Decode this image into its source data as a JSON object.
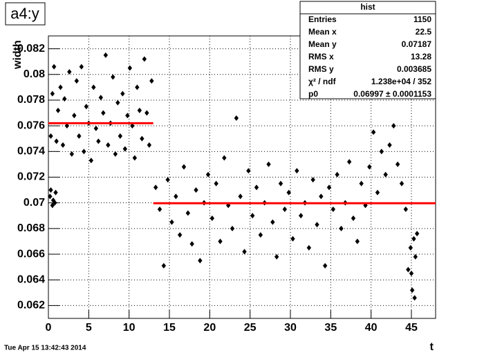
{
  "chart_data": {
    "type": "scatter",
    "title": "a4:y",
    "xlabel": "t",
    "ylabel": "width",
    "timestamp": "Tue Apr 15 13:42:43 2014",
    "xlim": [
      0,
      48
    ],
    "ylim": [
      0.061,
      0.083
    ],
    "xticks": [
      0,
      5,
      10,
      15,
      20,
      25,
      30,
      35,
      40,
      45
    ],
    "yticks": [
      0.062,
      0.064,
      0.066,
      0.068,
      0.07,
      0.072,
      0.074,
      0.076,
      0.078,
      0.08,
      0.082
    ],
    "grid": true,
    "color": "#000000",
    "fit_color": "#ff0000",
    "stats": {
      "title": "hist",
      "rows": [
        [
          "Entries",
          "1150"
        ],
        [
          "Mean x",
          "22.5"
        ],
        [
          "Mean y",
          "0.07187"
        ],
        [
          "RMS x",
          "13.28"
        ],
        [
          "RMS y",
          "0.003685"
        ],
        [
          "χ² / ndf",
          "1.238e+04 / 352"
        ],
        [
          "p0",
          "0.06997 ± 0.0001153"
        ]
      ]
    },
    "fits": [
      {
        "x": [
          0,
          13
        ],
        "y": 0.0762
      },
      {
        "x": [
          13,
          48
        ],
        "y": 0.06997
      }
    ],
    "x": [
      0.2,
      0.3,
      0.5,
      0.6,
      0.8,
      0.9,
      0.3,
      0.5,
      0.7,
      1.0,
      1.2,
      1.5,
      1.8,
      2.0,
      2.3,
      2.6,
      2.9,
      3.2,
      3.5,
      3.8,
      4.1,
      4.4,
      4.7,
      5.0,
      5.3,
      5.6,
      5.9,
      6.2,
      6.5,
      6.8,
      7.1,
      7.4,
      7.7,
      8.0,
      8.3,
      8.6,
      8.9,
      9.2,
      9.5,
      9.8,
      10.1,
      10.4,
      10.7,
      11.0,
      11.3,
      11.6,
      11.9,
      12.2,
      12.5,
      12.8,
      13.3,
      13.8,
      14.3,
      14.8,
      15.3,
      15.8,
      16.3,
      16.8,
      17.3,
      17.8,
      18.3,
      18.8,
      19.3,
      19.8,
      20.3,
      20.8,
      21.3,
      21.8,
      22.3,
      22.8,
      23.3,
      23.8,
      24.3,
      24.8,
      25.3,
      25.8,
      26.3,
      26.8,
      27.3,
      27.8,
      28.3,
      28.8,
      29.3,
      29.8,
      30.3,
      30.8,
      31.3,
      31.8,
      32.3,
      32.8,
      33.3,
      33.8,
      34.3,
      34.8,
      35.3,
      35.8,
      36.3,
      36.8,
      37.3,
      37.8,
      38.3,
      38.8,
      39.3,
      39.8,
      40.3,
      40.8,
      41.3,
      41.8,
      42.3,
      42.8,
      43.3,
      43.8,
      44.3,
      44.6,
      44.9,
      45.1,
      45.3,
      45.5,
      45.7,
      45.0,
      45.4
    ],
    "values": [
      0.0705,
      0.071,
      0.0698,
      0.0702,
      0.07,
      0.0708,
      0.0752,
      0.0785,
      0.0806,
      0.0748,
      0.0772,
      0.079,
      0.0745,
      0.0781,
      0.076,
      0.0802,
      0.0738,
      0.0768,
      0.0795,
      0.0752,
      0.0806,
      0.074,
      0.0775,
      0.0762,
      0.0733,
      0.079,
      0.0758,
      0.0748,
      0.0782,
      0.077,
      0.0815,
      0.0745,
      0.0762,
      0.0798,
      0.0738,
      0.0778,
      0.0752,
      0.0785,
      0.0742,
      0.0768,
      0.0805,
      0.076,
      0.0735,
      0.079,
      0.0772,
      0.075,
      0.0812,
      0.077,
      0.0745,
      0.0795,
      0.0712,
      0.0695,
      0.0651,
      0.0718,
      0.0685,
      0.0705,
      0.0675,
      0.0728,
      0.0692,
      0.0668,
      0.071,
      0.0655,
      0.07,
      0.0722,
      0.0688,
      0.0715,
      0.067,
      0.0735,
      0.0698,
      0.068,
      0.0766,
      0.0705,
      0.0662,
      0.0725,
      0.069,
      0.0712,
      0.0675,
      0.07,
      0.073,
      0.0685,
      0.0658,
      0.0715,
      0.0695,
      0.0708,
      0.0672,
      0.0725,
      0.069,
      0.07,
      0.0665,
      0.0718,
      0.0683,
      0.0705,
      0.0651,
      0.0712,
      0.0695,
      0.0722,
      0.068,
      0.07,
      0.0732,
      0.0688,
      0.067,
      0.0715,
      0.0698,
      0.0728,
      0.0755,
      0.0708,
      0.074,
      0.0722,
      0.0745,
      0.076,
      0.073,
      0.0715,
      0.0695,
      0.0648,
      0.0665,
      0.0632,
      0.0672,
      0.0658,
      0.0676,
      0.0645,
      0.0626
    ]
  }
}
